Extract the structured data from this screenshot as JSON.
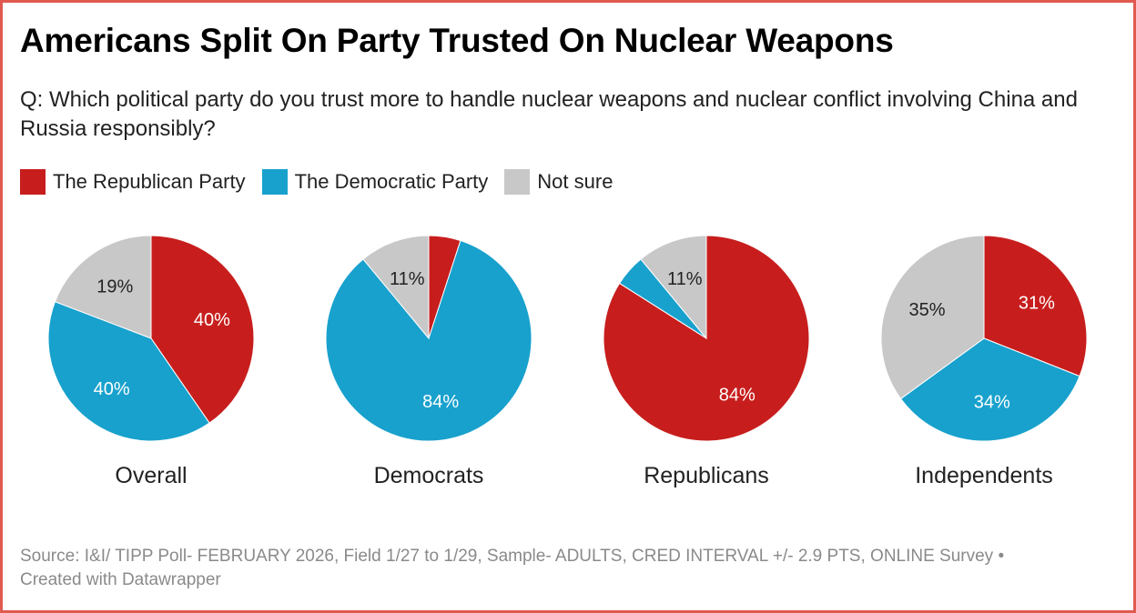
{
  "title": "Americans Split On Party Trusted On Nuclear Weapons",
  "subtitle": "Q: Which political party do you trust more to handle nuclear weapons and nuclear conflict involving China and Russia responsibly?",
  "legend": [
    {
      "label": "The Republican Party",
      "color": "#c71e1d"
    },
    {
      "label": "The Democratic Party",
      "color": "#18a1cd"
    },
    {
      "label": "Not sure",
      "color": "#c8c8c8"
    }
  ],
  "footer": {
    "source": "Source: I&I/ TIPP Poll- FEBRUARY 2026, Field 1/27 to 1/29, Sample- ADULTS, CRED INTERVAL +/- 2.9 PTS, ONLINE Survey •",
    "credit": "Created with Datawrapper"
  },
  "chart_data": {
    "type": "pie",
    "categories": [
      "The Republican Party",
      "The Democratic Party",
      "Not sure"
    ],
    "colors": [
      "#c71e1d",
      "#18a1cd",
      "#c8c8c8"
    ],
    "unit": "%",
    "pies": [
      {
        "name": "Overall",
        "values": [
          40,
          40,
          19
        ]
      },
      {
        "name": "Democrats",
        "values": [
          5,
          84,
          11
        ]
      },
      {
        "name": "Republicans",
        "values": [
          84,
          5,
          11
        ]
      },
      {
        "name": "Independents",
        "values": [
          31,
          34,
          35
        ]
      }
    ]
  }
}
